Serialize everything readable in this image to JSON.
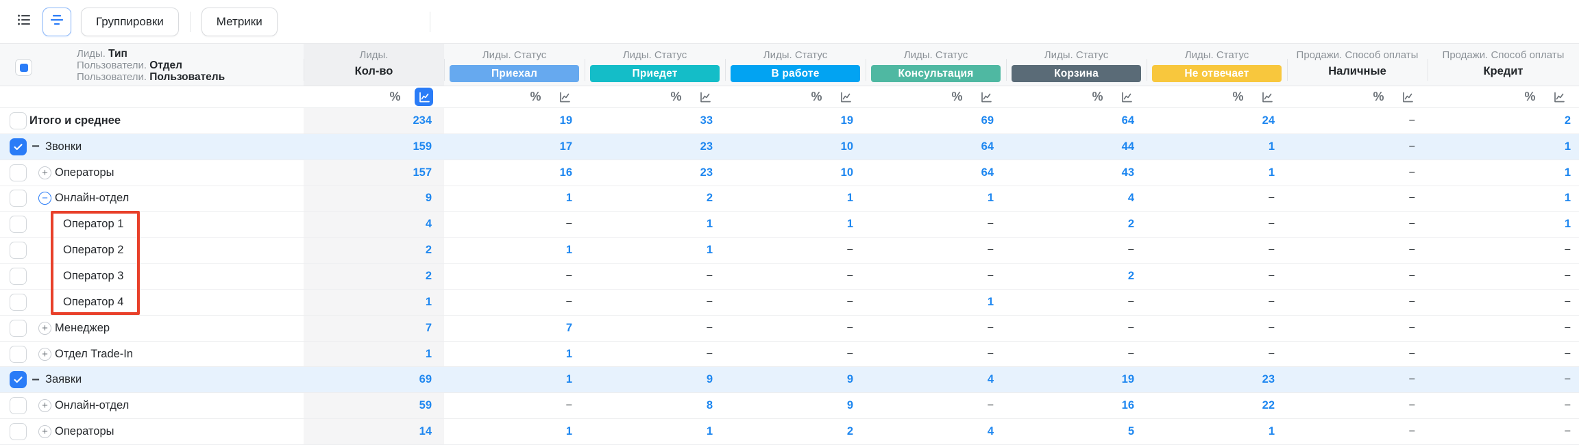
{
  "toolbar": {
    "groupings_label": "Группировки",
    "metrics_label": "Метрики"
  },
  "group_header": {
    "checkbox_state": "indeterminate",
    "lines": [
      {
        "prefix": "Лиды. ",
        "name": "Тип"
      },
      {
        "prefix": "Пользователи. ",
        "name": "Отдел"
      },
      {
        "prefix": "Пользователи. ",
        "name": "Пользователь"
      }
    ]
  },
  "columns": [
    {
      "title": "Лиды.",
      "subtitle": "Кол-во",
      "selected": true
    },
    {
      "title": "Лиды. Статус",
      "badge": "Приехал",
      "badge_color": "#66A9EF"
    },
    {
      "title": "Лиды. Статус",
      "badge": "Приедет",
      "badge_color": "#14BDC8"
    },
    {
      "title": "Лиды. Статус",
      "badge": "В работе",
      "badge_color": "#02A3F2"
    },
    {
      "title": "Лиды. Статус",
      "badge": "Консультация",
      "badge_color": "#4FB8A2"
    },
    {
      "title": "Лиды. Статус",
      "badge": "Корзина",
      "badge_color": "#5A6B77"
    },
    {
      "title": "Лиды. Статус",
      "badge": "Не отвечает",
      "badge_color": "#F8C73D"
    },
    {
      "title": "Продажи. Способ оплаты",
      "subtitle": "Наличные"
    },
    {
      "title": "Продажи. Способ оплаты",
      "subtitle": "Кредит"
    }
  ],
  "rows": [
    {
      "label": "Итого и среднее",
      "level": 0,
      "expander": "none",
      "checkbox": "unchecked",
      "highlight": false,
      "bold": true,
      "values": [
        "234",
        "19",
        "33",
        "19",
        "69",
        "64",
        "24",
        "−",
        "2"
      ]
    },
    {
      "label": "Звонки",
      "level": 1,
      "expander": "minus",
      "checkbox": "checked",
      "highlight": true,
      "bold": false,
      "values": [
        "159",
        "17",
        "23",
        "10",
        "64",
        "44",
        "1",
        "−",
        "1"
      ]
    },
    {
      "label": "Операторы",
      "level": 2,
      "expander": "plus",
      "checkbox": "unchecked",
      "highlight": false,
      "bold": false,
      "values": [
        "157",
        "16",
        "23",
        "10",
        "64",
        "43",
        "1",
        "−",
        "1"
      ]
    },
    {
      "label": "Онлайн-отдел",
      "level": 2,
      "expander": "minus-circle",
      "checkbox": "unchecked",
      "highlight": false,
      "bold": false,
      "values": [
        "9",
        "1",
        "2",
        "1",
        "1",
        "4",
        "−",
        "−",
        "1"
      ]
    },
    {
      "label": "Оператор 1",
      "level": 3,
      "expander": "none",
      "checkbox": "unchecked",
      "highlight": false,
      "bold": false,
      "values": [
        "4",
        "−",
        "1",
        "1",
        "−",
        "2",
        "−",
        "−",
        "1"
      ]
    },
    {
      "label": "Оператор 2",
      "level": 3,
      "expander": "none",
      "checkbox": "unchecked",
      "highlight": false,
      "bold": false,
      "values": [
        "2",
        "1",
        "1",
        "−",
        "−",
        "−",
        "−",
        "−",
        "−"
      ]
    },
    {
      "label": "Оператор 3",
      "level": 3,
      "expander": "none",
      "checkbox": "unchecked",
      "highlight": false,
      "bold": false,
      "values": [
        "2",
        "−",
        "−",
        "−",
        "−",
        "2",
        "−",
        "−",
        "−"
      ]
    },
    {
      "label": "Оператор 4",
      "level": 3,
      "expander": "none",
      "checkbox": "unchecked",
      "highlight": false,
      "bold": false,
      "values": [
        "1",
        "−",
        "−",
        "−",
        "1",
        "−",
        "−",
        "−",
        "−"
      ]
    },
    {
      "label": "Менеджер",
      "level": 2,
      "expander": "plus",
      "checkbox": "unchecked",
      "highlight": false,
      "bold": false,
      "values": [
        "7",
        "7",
        "−",
        "−",
        "−",
        "−",
        "−",
        "−",
        "−"
      ]
    },
    {
      "label": "Отдел Trade-In",
      "level": 2,
      "expander": "plus",
      "checkbox": "unchecked",
      "highlight": false,
      "bold": false,
      "values": [
        "1",
        "1",
        "−",
        "−",
        "−",
        "−",
        "−",
        "−",
        "−"
      ]
    },
    {
      "label": "Заявки",
      "level": 1,
      "expander": "minus",
      "checkbox": "checked",
      "highlight": true,
      "bold": false,
      "values": [
        "69",
        "1",
        "9",
        "9",
        "4",
        "19",
        "23",
        "−",
        "−"
      ]
    },
    {
      "label": "Онлайн-отдел",
      "level": 2,
      "expander": "plus",
      "checkbox": "unchecked",
      "highlight": false,
      "bold": false,
      "values": [
        "59",
        "−",
        "8",
        "9",
        "−",
        "16",
        "22",
        "−",
        "−"
      ]
    },
    {
      "label": "Операторы",
      "level": 2,
      "expander": "plus",
      "checkbox": "unchecked",
      "highlight": false,
      "bold": false,
      "values": [
        "14",
        "1",
        "1",
        "2",
        "4",
        "5",
        "1",
        "−",
        "−"
      ]
    }
  ],
  "annotation": {
    "box_color": "#E8402A"
  },
  "colors": {
    "accent_blue": "#2A7CF7",
    "value_blue": "#1E87F0",
    "row_highlight": "#E7F2FD"
  }
}
